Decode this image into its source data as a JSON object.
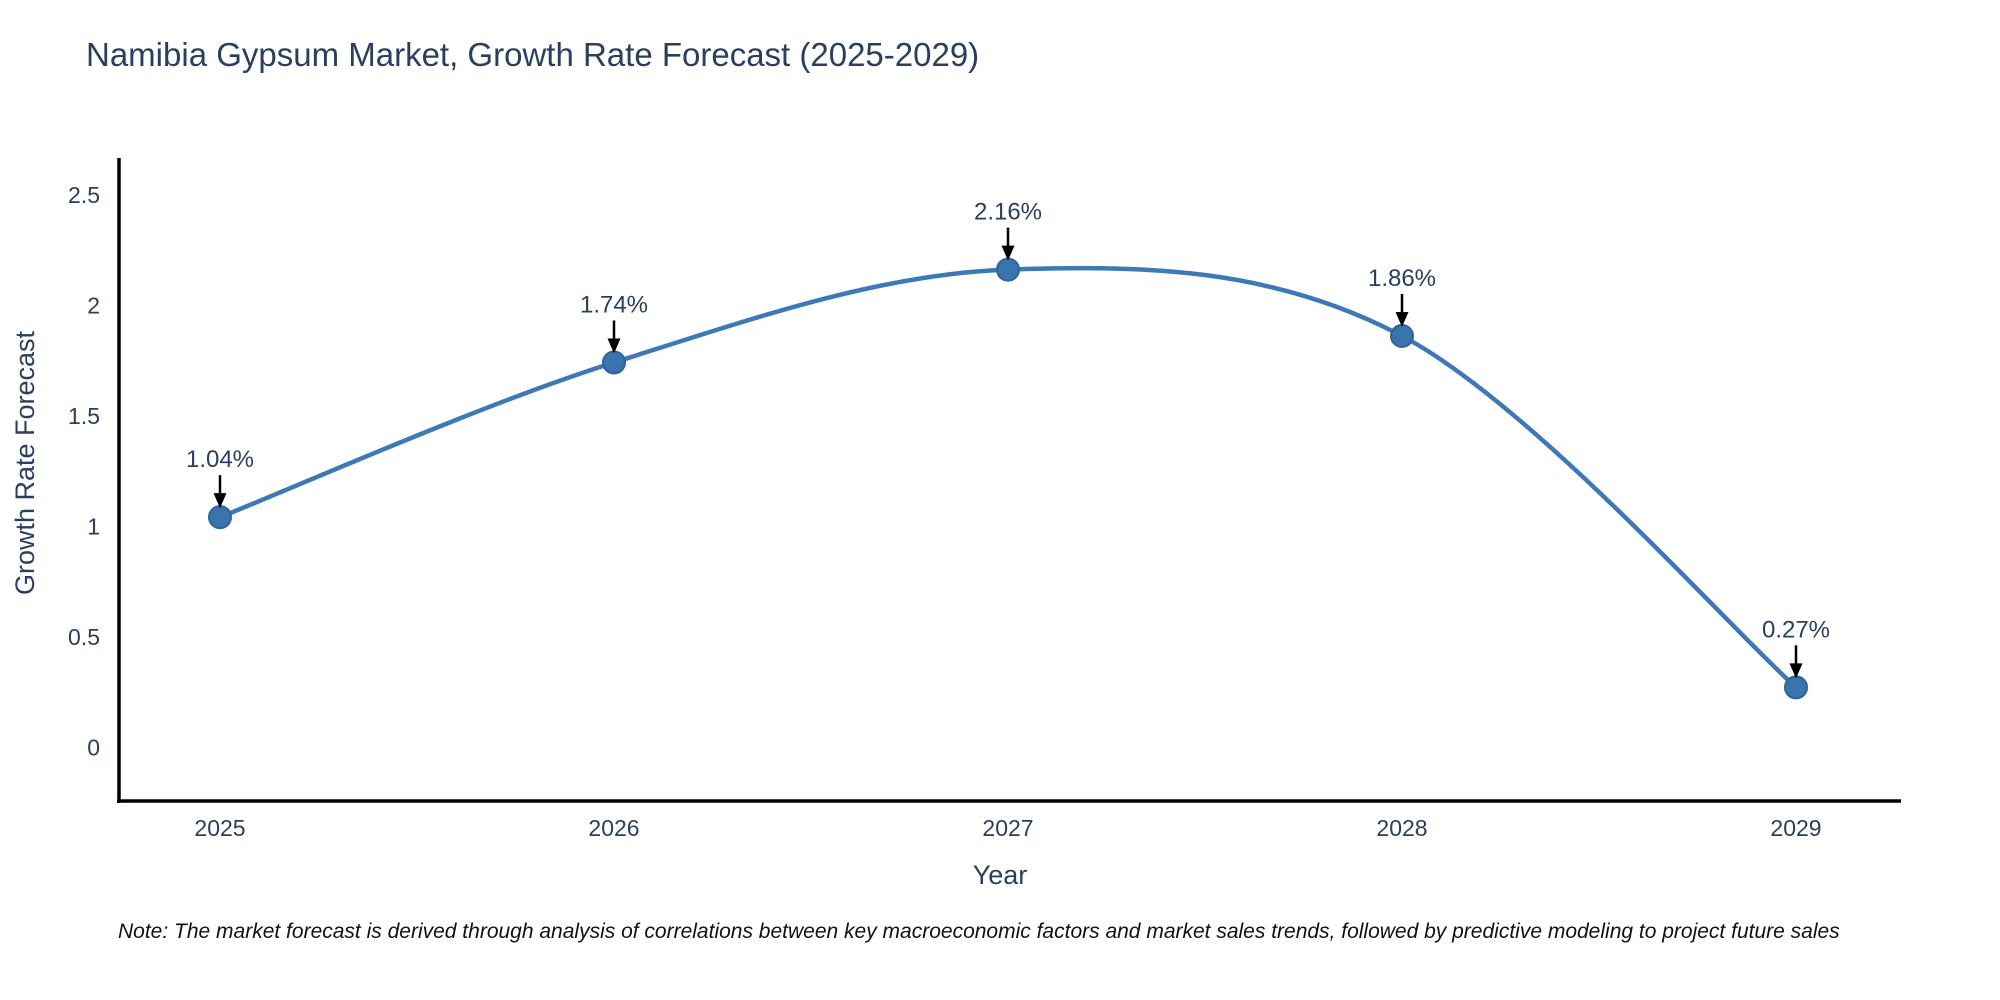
{
  "title": "Namibia Gypsum Market, Growth Rate Forecast (2025-2029)",
  "note": "Note: The market forecast is derived through analysis of correlations between key macroeconomic factors and market sales trends, followed by predictive modeling to project future sales",
  "chart_data": {
    "type": "line",
    "line_shape": "spline",
    "x": [
      2025,
      2026,
      2027,
      2028,
      2029
    ],
    "y": [
      1.04,
      1.74,
      2.16,
      1.86,
      0.27
    ],
    "point_labels": [
      "1.04%",
      "1.74%",
      "2.16%",
      "1.86%",
      "0.27%"
    ],
    "title": "Namibia Gypsum Market, Growth Rate Forecast (2025-2029)",
    "xlabel": "Year",
    "ylabel": "Growth Rate Forecast",
    "xtick_labels": [
      "2025",
      "2026",
      "2027",
      "2028",
      "2029"
    ],
    "yticks": [
      0,
      0.5,
      1,
      1.5,
      2,
      2.5
    ],
    "ylim": [
      -0.24,
      2.66
    ],
    "grid": false,
    "legend": "none",
    "colors": {
      "line": "#3e79b6",
      "marker_fill": "#3a74ad",
      "marker_edge": "#2f6298",
      "arrow": "#000000",
      "text": "#2a3f5f",
      "axis_line": "#000000",
      "background": "#ffffff"
    }
  }
}
